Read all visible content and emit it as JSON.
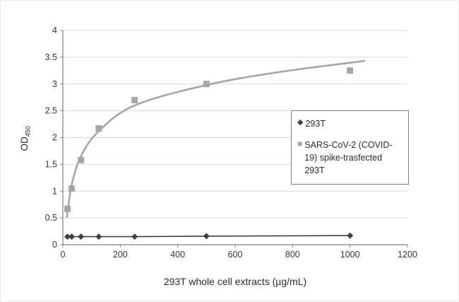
{
  "chart_data": {
    "type": "scatter",
    "title": "",
    "xlabel": "293T whole cell extracts (µg/mL)",
    "ylabel_main": "OD",
    "ylabel_sub": "450",
    "xlim": [
      0,
      1200
    ],
    "ylim": [
      0,
      4
    ],
    "xticks": [
      0,
      200,
      400,
      600,
      800,
      1000,
      1200
    ],
    "yticks": [
      0,
      0.5,
      1,
      1.5,
      2,
      2.5,
      3,
      3.5,
      4
    ],
    "grid": "horizontal",
    "legend_position": "middle-right",
    "colors": {
      "series_293t": "#404040",
      "series_spike": "#a6a6a6",
      "gridline": "#d9d9d9",
      "axis": "#808080"
    },
    "series": [
      {
        "name": "293T",
        "marker": "diamond",
        "color": "#404040",
        "x": [
          16,
          31,
          63,
          125,
          250,
          500,
          1000
        ],
        "y": [
          0.15,
          0.15,
          0.15,
          0.15,
          0.15,
          0.16,
          0.17
        ]
      },
      {
        "name": "SARS-CoV-2 (COVID-19) spike-trasfected 293T",
        "marker": "square",
        "color": "#a6a6a6",
        "x": [
          16,
          31,
          63,
          125,
          250,
          500,
          1000
        ],
        "y": [
          0.67,
          1.05,
          1.58,
          2.17,
          2.7,
          3.0,
          3.25
        ],
        "fit_curve": [
          [
            14,
            0.52
          ],
          [
            31,
            1.12
          ],
          [
            63,
            1.65
          ],
          [
            125,
            2.12
          ],
          [
            250,
            2.6
          ],
          [
            500,
            2.98
          ],
          [
            750,
            3.22
          ],
          [
            1050,
            3.43
          ]
        ]
      }
    ]
  }
}
